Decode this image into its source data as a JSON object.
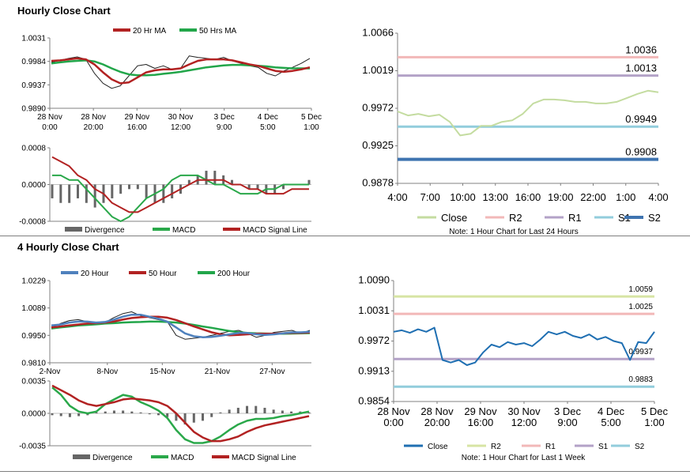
{
  "sections": {
    "hourly_title": "Hourly Close Chart",
    "four_hourly_title": "4 Hourly Close Chart"
  },
  "colors": {
    "ma20": "#b22222",
    "ma50": "#22a64a",
    "close_light": "#c4dca0",
    "r2": "#f2b8b8",
    "r1": "#b3a2c7",
    "s1": "#92cddc",
    "s2": "#3f74b0",
    "close_blue": "#1f6fb2",
    "r2_4h": "#d7e4a4",
    "r1_4h": "#f2b8b8",
    "s1_4h": "#b3a2c7",
    "s2_4h": "#92cddc",
    "macd": "#2aa84a",
    "signal": "#b22222",
    "divergence": "#666666",
    "price": "#222222",
    "ma20_4h": "#4f81bd",
    "ma200": "#22a64a"
  },
  "chart_data": [
    {
      "id": "hourly_price",
      "type": "line",
      "title": "",
      "legend": [
        "20 Hr MA",
        "50 Hrs MA"
      ],
      "x_tick_labels": [
        [
          "28 Nov",
          "0:00"
        ],
        [
          "28 Nov",
          "20:00"
        ],
        [
          "29 Nov",
          "16:00"
        ],
        [
          "30 Nov",
          "12:00"
        ],
        [
          "3 Dec",
          "9:00"
        ],
        [
          "4 Dec",
          "5:00"
        ],
        [
          "5 Dec",
          "1:00"
        ]
      ],
      "y_tick_labels": [
        "1.0031",
        "0.9984",
        "0.9937",
        "0.9890"
      ],
      "ylim": [
        0.989,
        1.0031
      ],
      "series": [
        {
          "name": "Price",
          "values": [
            0.9982,
            0.9986,
            0.999,
            0.9993,
            0.9988,
            0.996,
            0.994,
            0.993,
            0.9935,
            0.9955,
            0.9975,
            0.9978,
            0.997,
            0.9975,
            0.9968,
            0.997,
            0.9995,
            0.9992,
            0.999,
            0.9988,
            0.9992,
            0.9985,
            0.998,
            0.9975,
            0.9972,
            0.996,
            0.9955,
            0.9965,
            0.9972,
            0.998,
            0.999
          ]
        },
        {
          "name": "20 Hr MA",
          "values": [
            0.9985,
            0.9986,
            0.9988,
            0.999,
            0.9988,
            0.9978,
            0.9962,
            0.9948,
            0.994,
            0.9942,
            0.9952,
            0.9962,
            0.9966,
            0.9968,
            0.9968,
            0.997,
            0.9978,
            0.9985,
            0.9988,
            0.9988,
            0.9988,
            0.9986,
            0.9982,
            0.9978,
            0.9975,
            0.997,
            0.9965,
            0.9963,
            0.9965,
            0.9968,
            0.9972
          ]
        },
        {
          "name": "50 Hrs MA",
          "values": [
            0.998,
            0.9982,
            0.9984,
            0.9985,
            0.9986,
            0.9984,
            0.9978,
            0.997,
            0.9963,
            0.9958,
            0.9956,
            0.9956,
            0.9957,
            0.9959,
            0.9961,
            0.9963,
            0.9966,
            0.9969,
            0.9972,
            0.9974,
            0.9976,
            0.9977,
            0.9977,
            0.9976,
            0.9975,
            0.9974,
            0.9972,
            0.9971,
            0.997,
            0.997,
            0.997
          ]
        }
      ]
    },
    {
      "id": "hourly_macd",
      "type": "bar",
      "legend": [
        "Divergence",
        "MACD",
        "MACD Signal Line"
      ],
      "y_tick_labels": [
        "0.0008",
        "0.0000",
        "-0.0008"
      ],
      "ylim": [
        -0.0008,
        0.0008
      ],
      "series": [
        {
          "name": "Divergence",
          "values": [
            -0.0003,
            -0.0004,
            -0.0004,
            -0.0003,
            -0.0004,
            -0.0005,
            -0.0004,
            -0.0003,
            -0.0002,
            -0.0001,
            -0.0001,
            -0.0003,
            -0.0004,
            -0.0004,
            -0.0003,
            -0.0002,
            0.0001,
            0.0002,
            0.0003,
            0.0003,
            0.0002,
            0.0001,
            0.0,
            -0.0001,
            -0.0001,
            -0.0002,
            -0.0002,
            -0.0001,
            0.0,
            0.0,
            0.0001
          ]
        },
        {
          "name": "MACD",
          "values": [
            0.0002,
            0.0002,
            0.0001,
            0.0001,
            -0.0001,
            -0.0003,
            -0.0005,
            -0.0007,
            -0.0008,
            -0.0007,
            -0.0005,
            -0.0003,
            -0.0002,
            -0.0001,
            0.0001,
            0.0002,
            0.0002,
            0.0002,
            0.0001,
            0.0,
            0.0,
            -0.0001,
            -0.0002,
            -0.0002,
            -0.0002,
            -0.0001,
            -0.0001,
            0.0,
            0.0,
            0.0,
            0.0
          ]
        },
        {
          "name": "MACD Signal Line",
          "values": [
            0.0006,
            0.0005,
            0.0004,
            0.0002,
            0.0001,
            -0.0001,
            -0.0002,
            -0.0004,
            -0.0005,
            -0.0006,
            -0.0006,
            -0.0005,
            -0.0004,
            -0.0003,
            -0.0002,
            -0.0001,
            0.0,
            0.0001,
            0.0001,
            0.0001,
            0.0001,
            0.0,
            0.0,
            -0.0001,
            -0.0001,
            -0.0002,
            -0.0002,
            -0.0002,
            -0.0001,
            -0.0001,
            -0.0001
          ]
        }
      ]
    },
    {
      "id": "hourly_levels",
      "type": "line",
      "legend": [
        "Close",
        "R2",
        "R1",
        "S1",
        "S2"
      ],
      "note": "Note: 1 Hour Chart for Last 24 Hours",
      "x_tick_labels": [
        "4:00",
        "7:00",
        "10:00",
        "13:00",
        "16:00",
        "19:00",
        "22:00",
        "1:00",
        "4:00"
      ],
      "y_tick_labels": [
        "1.0066",
        "1.0019",
        "0.9972",
        "0.9925",
        "0.9878"
      ],
      "ylim": [
        0.9878,
        1.0066
      ],
      "levels": {
        "R2": 1.0036,
        "R1": 1.0013,
        "S1": 0.9949,
        "S2": 0.9908
      },
      "level_labels": {
        "R2": "1.0036",
        "R1": "1.0013",
        "S1": "0.9949",
        "S2": "0.9908"
      },
      "close": [
        0.9968,
        0.9963,
        0.9965,
        0.9962,
        0.9964,
        0.9955,
        0.9938,
        0.994,
        0.995,
        0.995,
        0.9955,
        0.9957,
        0.9965,
        0.9978,
        0.9983,
        0.9983,
        0.9982,
        0.998,
        0.998,
        0.9978,
        0.9978,
        0.998,
        0.9985,
        0.999,
        0.9994,
        0.9992
      ]
    },
    {
      "id": "four_hourly_price",
      "type": "line",
      "legend": [
        "20 Hour",
        "50 Hour",
        "200 Hour"
      ],
      "x_tick_labels": [
        "2-Nov",
        "8-Nov",
        "15-Nov",
        "21-Nov",
        "27-Nov"
      ],
      "y_tick_labels": [
        "1.0229",
        "1.0089",
        "0.9950",
        "0.9810"
      ],
      "ylim": [
        0.981,
        1.0229
      ],
      "series": [
        {
          "name": "Price",
          "values": [
            0.999,
            1.001,
            1.0025,
            1.003,
            1.002,
            1.0005,
            1.0015,
            1.004,
            1.006,
            1.007,
            1.005,
            1.004,
            1.003,
            1.002,
            0.995,
            0.993,
            0.9935,
            0.994,
            0.995,
            0.996,
            0.997,
            0.9975,
            0.996,
            0.994,
            0.995,
            0.9965,
            0.997,
            0.9975,
            0.996,
            0.9975
          ]
        },
        {
          "name": "20 Hour",
          "values": [
            1.0,
            1.0005,
            1.0015,
            1.002,
            1.002,
            1.0015,
            1.0018,
            1.003,
            1.0045,
            1.0055,
            1.0055,
            1.0045,
            1.0035,
            1.002,
            0.999,
            0.996,
            0.9945,
            0.994,
            0.9942,
            0.9948,
            0.9955,
            0.9962,
            0.9962,
            0.9955,
            0.9952,
            0.9955,
            0.996,
            0.9965,
            0.9965,
            0.9968
          ]
        },
        {
          "name": "50 Hour",
          "values": [
            0.999,
            0.9995,
            1.0,
            1.0005,
            1.001,
            1.0012,
            1.0015,
            1.002,
            1.003,
            1.0038,
            1.0042,
            1.0045,
            1.0045,
            1.004,
            1.0028,
            1.0012,
            0.9995,
            0.998,
            0.9965,
            0.9955,
            0.995,
            0.9952,
            0.9955,
            0.9958,
            0.9958,
            0.9958,
            0.996,
            0.9962,
            0.9962,
            0.9964
          ]
        },
        {
          "name": "200 Hour",
          "values": [
            0.9985,
            0.999,
            0.9995,
            1.0,
            1.0003,
            1.0006,
            1.001,
            1.0012,
            1.0015,
            1.0017,
            1.0018,
            1.002,
            1.002,
            1.0018,
            1.0015,
            1.001,
            1.0003,
            0.9995,
            0.9988,
            0.998,
            0.9972,
            0.9966,
            0.9962,
            0.996,
            0.9959,
            0.9958,
            0.9958,
            0.9959,
            0.996,
            0.9961
          ]
        }
      ]
    },
    {
      "id": "four_hourly_macd",
      "type": "bar",
      "legend": [
        "Divergence",
        "MACD",
        "MACD Signal Line"
      ],
      "y_tick_labels": [
        "0.0035",
        "0.0000",
        "-0.0035"
      ],
      "ylim": [
        -0.0035,
        0.0035
      ],
      "series": [
        {
          "name": "Divergence",
          "values": [
            -0.0002,
            -0.0003,
            -0.0004,
            -0.0003,
            -0.0002,
            0.0001,
            0.0002,
            0.0003,
            0.0003,
            0.0002,
            0.0001,
            -0.0001,
            -0.0002,
            -0.0004,
            -0.0008,
            -0.0012,
            -0.001,
            -0.0008,
            -0.0004,
            0.0001,
            0.0004,
            0.0006,
            0.0008,
            0.0008,
            0.0006,
            0.0004,
            0.0003,
            0.0002,
            0.0002,
            0.0001
          ]
        },
        {
          "name": "MACD",
          "values": [
            0.0028,
            0.002,
            0.0008,
            0.0002,
            0.0,
            0.0002,
            0.001,
            0.0015,
            0.002,
            0.0018,
            0.0012,
            0.0008,
            0.0003,
            -0.0005,
            -0.0018,
            -0.0028,
            -0.0032,
            -0.0032,
            -0.003,
            -0.0025,
            -0.0018,
            -0.0012,
            -0.0008,
            -0.0006,
            -0.0006,
            -0.0005,
            -0.0003,
            -0.0002,
            0.0,
            0.0002
          ]
        },
        {
          "name": "MACD Signal Line",
          "values": [
            0.003,
            0.0025,
            0.002,
            0.0014,
            0.001,
            0.0008,
            0.001,
            0.0012,
            0.0015,
            0.0016,
            0.0015,
            0.0014,
            0.0012,
            0.0008,
            0.0,
            -0.001,
            -0.002,
            -0.0026,
            -0.003,
            -0.003,
            -0.0028,
            -0.0025,
            -0.002,
            -0.0016,
            -0.0013,
            -0.0011,
            -0.0009,
            -0.0007,
            -0.0005,
            -0.0003
          ]
        }
      ]
    },
    {
      "id": "four_hourly_levels",
      "type": "line",
      "legend": [
        "Close",
        "R2",
        "R1",
        "S1",
        "S2"
      ],
      "note": "Note: 1 Hour Chart for Last 1 Week",
      "x_tick_labels": [
        [
          "28 Nov",
          "0:00"
        ],
        [
          "28 Nov",
          "20:00"
        ],
        [
          "29 Nov",
          "16:00"
        ],
        [
          "30 Nov",
          "12:00"
        ],
        [
          "3 Dec",
          "9:00"
        ],
        [
          "4 Dec",
          "5:00"
        ],
        [
          "5 Dec",
          "1:00"
        ]
      ],
      "y_tick_labels": [
        "1.0090",
        "1.0031",
        "0.9972",
        "0.9913",
        "0.9854"
      ],
      "ylim": [
        0.9854,
        1.009
      ],
      "levels": {
        "R2": 1.0059,
        "R1": 1.0025,
        "S1": 0.9937,
        "S2": 0.9883
      },
      "level_labels": {
        "R2": "1.0059",
        "R1": "1.0025",
        "S1": "0.9937",
        "S2": "0.9883"
      },
      "close": [
        0.999,
        0.9993,
        0.9988,
        0.9995,
        0.999,
        0.9998,
        0.9935,
        0.993,
        0.9935,
        0.9925,
        0.993,
        0.995,
        0.9965,
        0.996,
        0.997,
        0.9965,
        0.9968,
        0.9962,
        0.9975,
        0.999,
        0.9985,
        0.999,
        0.9982,
        0.9978,
        0.9985,
        0.9975,
        0.998,
        0.9972,
        0.9968,
        0.9935,
        0.997,
        0.9968,
        0.999
      ]
    }
  ]
}
